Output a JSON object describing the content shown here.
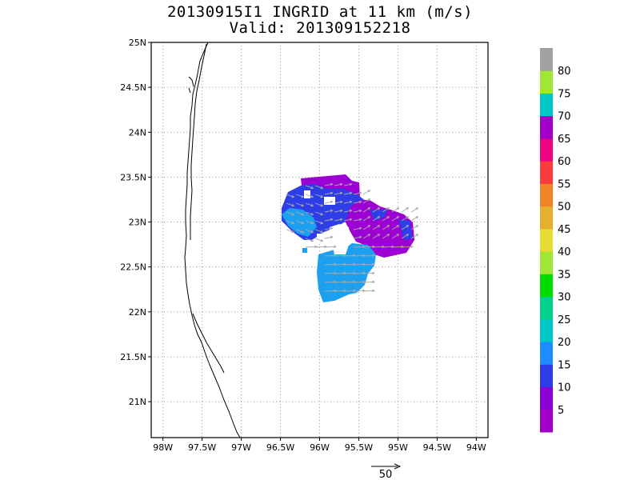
{
  "title": "20130915I1 INGRID at 11 km (m/s)",
  "subtitle": "Valid: 201309152218",
  "map": {
    "lat_labels": [
      "25N",
      "24.5N",
      "24N",
      "23.5N",
      "23N",
      "22.5N",
      "22N",
      "21.5N",
      "21N"
    ],
    "lon_labels": [
      "98W",
      "97.5W",
      "97W",
      "96.5W",
      "96W",
      "95.5W",
      "95W",
      "94.5W",
      "94W"
    ],
    "lon_range": [
      -98.15,
      -93.85
    ],
    "lat_range": [
      20.6,
      25.0
    ]
  },
  "colorbar": {
    "labels": [
      "5",
      "10",
      "15",
      "20",
      "25",
      "30",
      "35",
      "40",
      "45",
      "50",
      "55",
      "60",
      "65",
      "70",
      "75",
      "80"
    ],
    "colors": [
      "#a000c8",
      "#8c00d8",
      "#2c3ce6",
      "#1e8cff",
      "#00c8c8",
      "#00d28c",
      "#00dc00",
      "#a0e632",
      "#e6dc32",
      "#e6af2d",
      "#f08228",
      "#fa3c3c",
      "#f00082",
      "#a000c8",
      "#00c8c8",
      "#a0e632",
      "#a0a0a0"
    ]
  },
  "reference_vector": {
    "label": "50"
  }
}
